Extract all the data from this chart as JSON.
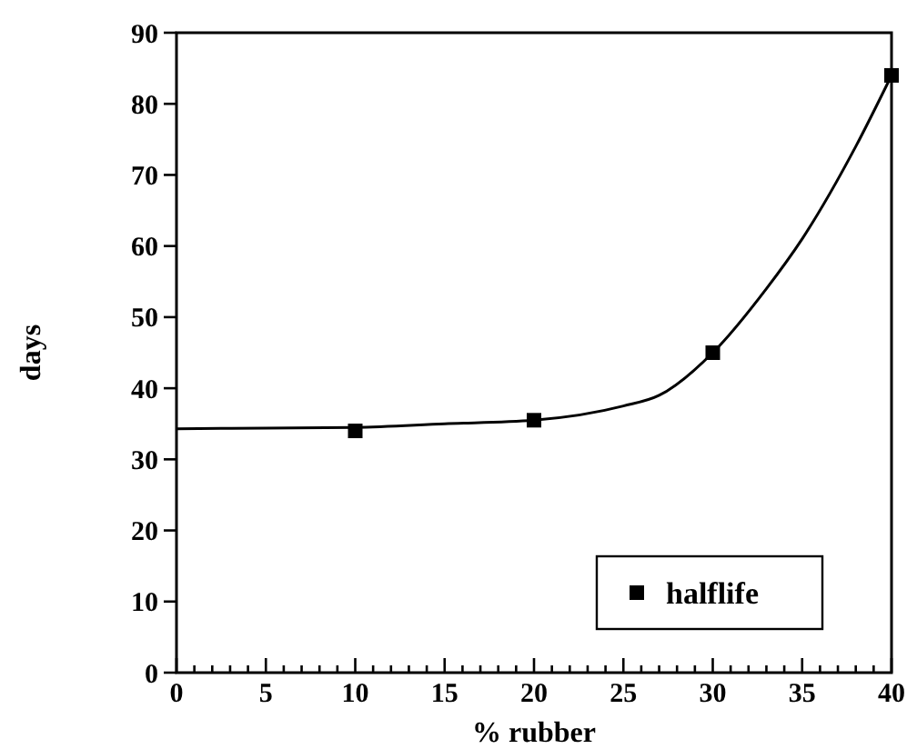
{
  "chart_data": {
    "type": "line",
    "xlabel": "% rubber",
    "ylabel": "days",
    "xlim": [
      0,
      40
    ],
    "ylim": [
      0,
      90
    ],
    "xticks": [
      0,
      {
        "value": 1,
        "label": null
      },
      {
        "value": 2,
        "label": null
      },
      {
        "value": 3,
        "label": null
      },
      {
        "value": 4,
        "label": null
      },
      5,
      {
        "value": 6,
        "label": null
      },
      {
        "value": 7,
        "label": null
      },
      {
        "value": 8,
        "label": null
      },
      {
        "value": 9,
        "label": null
      },
      10,
      {
        "value": 11,
        "label": null
      },
      {
        "value": 12,
        "label": null
      },
      {
        "value": 13,
        "label": null
      },
      {
        "value": 14,
        "label": null
      },
      15,
      {
        "value": 16,
        "label": null
      },
      {
        "value": 17,
        "label": null
      },
      {
        "value": 18,
        "label": null
      },
      {
        "value": 19,
        "label": null
      },
      20,
      {
        "value": 21,
        "label": null
      },
      {
        "value": 22,
        "label": null
      },
      {
        "value": 23,
        "label": null
      },
      {
        "value": 24,
        "label": null
      },
      25,
      {
        "value": 26,
        "label": null
      },
      {
        "value": 27,
        "label": null
      },
      {
        "value": 28,
        "label": null
      },
      {
        "value": 29,
        "label": null
      },
      30,
      {
        "value": 31,
        "label": null
      },
      {
        "value": 32,
        "label": null
      },
      {
        "value": 33,
        "label": null
      },
      {
        "value": 34,
        "label": null
      },
      35,
      {
        "value": 36,
        "label": null
      },
      {
        "value": 37,
        "label": null
      },
      {
        "value": 38,
        "label": null
      },
      {
        "value": 39,
        "label": null
      },
      40
    ],
    "yticks": [
      0,
      10,
      20,
      30,
      40,
      50,
      60,
      70,
      80,
      90
    ],
    "grid": false,
    "legend": "bottom right",
    "series": [
      {
        "name": "halflife",
        "type": "scatter",
        "marker": "square",
        "color": "#000000",
        "x": [
          10,
          20,
          30,
          40
        ],
        "values": [
          34,
          35.5,
          45,
          84
        ]
      },
      {
        "marker": "none",
        "color": "#000000",
        "x": [
          0,
          5,
          10,
          15,
          20,
          25,
          27,
          30,
          33,
          35,
          38,
          40
        ],
        "values": [
          34.3,
          34.4,
          34.5,
          35,
          35.5,
          37.5,
          39,
          45,
          54,
          61,
          74,
          84
        ]
      }
    ]
  }
}
